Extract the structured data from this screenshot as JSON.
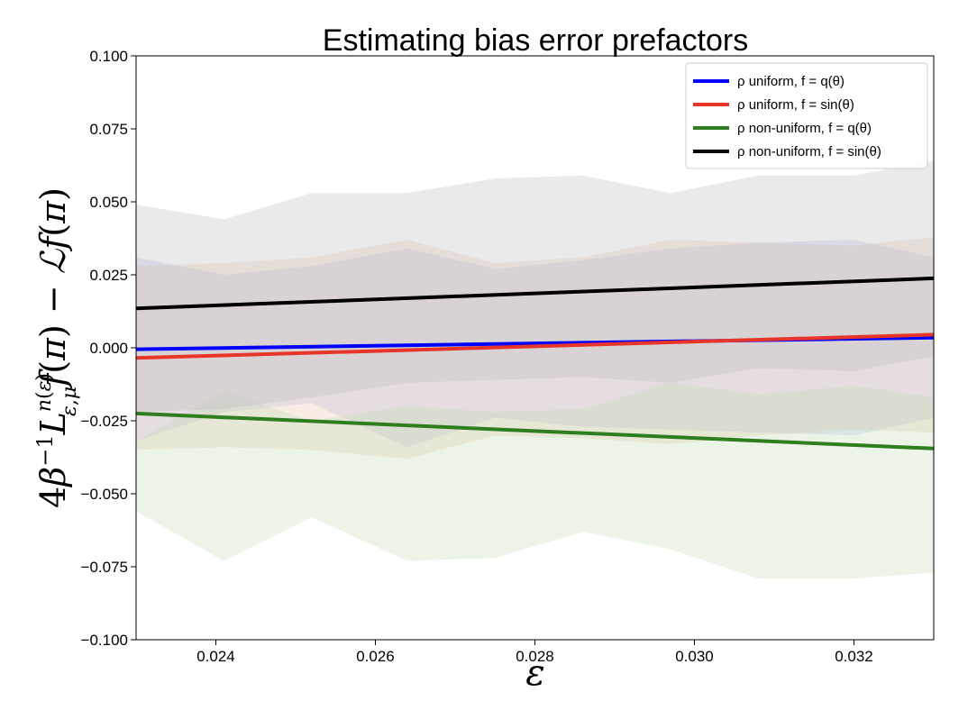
{
  "chart_data": {
    "type": "line",
    "title": "Estimating bias error prefactors",
    "xlabel": "ε",
    "ylabel": "4β⁻¹L_{ε,μ}^{n(ε)} f(π) − ℒf(π)",
    "xlim": [
      0.023,
      0.033
    ],
    "ylim": [
      -0.1,
      0.1
    ],
    "xticks": [
      0.024,
      0.026,
      0.028,
      0.03,
      0.032
    ],
    "xtick_labels": [
      "0.024",
      "0.026",
      "0.028",
      "0.030",
      "0.032"
    ],
    "yticks": [
      -0.1,
      -0.075,
      -0.05,
      -0.025,
      0.0,
      0.025,
      0.05,
      0.075,
      0.1
    ],
    "ytick_labels": [
      "−0.100",
      "−0.075",
      "−0.050",
      "−0.025",
      "0.000",
      "0.025",
      "0.050",
      "0.075",
      "0.100"
    ],
    "grid": false,
    "legend_position": "top-right",
    "band_x": [
      0.023,
      0.0241,
      0.0252,
      0.0264,
      0.0275,
      0.0286,
      0.0297,
      0.0308,
      0.032,
      0.033
    ],
    "series": [
      {
        "name": "ρ uniform, f = q(θ)",
        "color": "#0000ff",
        "band_color": "#aab8e8",
        "x": [
          0.023,
          0.033
        ],
        "values": [
          -0.0005,
          0.0035
        ],
        "band_upper": [
          0.031,
          0.025,
          0.028,
          0.034,
          0.027,
          0.03,
          0.034,
          0.036,
          0.037,
          0.031
        ],
        "band_lower": [
          -0.032,
          -0.022,
          -0.019,
          -0.034,
          -0.024,
          -0.027,
          -0.028,
          -0.029,
          -0.03,
          -0.024
        ]
      },
      {
        "name": "ρ uniform, f = sin(θ)",
        "color": "#e8352a",
        "band_color": "#e8c0a8",
        "x": [
          0.023,
          0.033
        ],
        "values": [
          -0.0035,
          0.0045
        ],
        "band_upper": [
          0.028,
          0.029,
          0.031,
          0.037,
          0.029,
          0.031,
          0.037,
          0.036,
          0.035,
          0.038
        ],
        "band_lower": [
          -0.035,
          -0.034,
          -0.035,
          -0.038,
          -0.03,
          -0.031,
          -0.033,
          -0.03,
          -0.028,
          -0.029
        ]
      },
      {
        "name": "ρ non-uniform, f = q(θ)",
        "color": "#2e7d1e",
        "band_color": "#bcd9b0",
        "x": [
          0.023,
          0.033
        ],
        "values": [
          -0.0225,
          -0.0345
        ],
        "band_upper": [
          -0.032,
          -0.015,
          -0.025,
          -0.02,
          -0.022,
          -0.021,
          -0.012,
          -0.016,
          -0.013,
          -0.017
        ],
        "band_lower": [
          -0.056,
          -0.073,
          -0.058,
          -0.073,
          -0.072,
          -0.063,
          -0.069,
          -0.079,
          -0.079,
          -0.077
        ]
      },
      {
        "name": "ρ non-uniform, f = sin(θ)",
        "color": "#000000",
        "band_color": "#b8b8b8",
        "x": [
          0.023,
          0.033
        ],
        "values": [
          0.0135,
          0.0238
        ],
        "band_upper": [
          0.049,
          0.044,
          0.053,
          0.053,
          0.058,
          0.059,
          0.053,
          0.059,
          0.059,
          0.064
        ],
        "band_lower": [
          -0.022,
          -0.021,
          -0.017,
          -0.012,
          -0.011,
          -0.01,
          -0.012,
          -0.007,
          -0.008,
          -0.003
        ]
      }
    ]
  }
}
